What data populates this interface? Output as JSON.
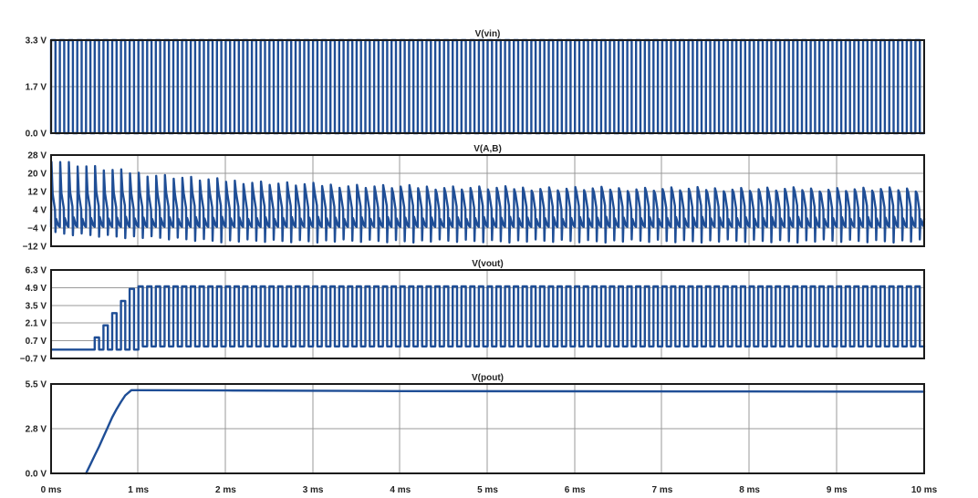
{
  "chart_data": [
    {
      "type": "line",
      "title": "V(vin)",
      "yticks": [
        "3.3 V",
        "1.7 V",
        "0.0 V"
      ],
      "ylim": [
        0,
        3.3
      ],
      "xlim_ms": [
        0,
        10
      ],
      "signal": {
        "kind": "square",
        "high": 3.3,
        "low": 0.0,
        "period_ms": 0.1,
        "duty": 0.5
      },
      "color": "#1f4e96"
    },
    {
      "type": "line",
      "title": "V(A,B)",
      "yticks": [
        "28 V",
        "20 V",
        "12 V",
        "4 V",
        "−4 V",
        "−12 V"
      ],
      "ylim": [
        -12,
        28
      ],
      "xlim_ms": [
        0,
        10
      ],
      "signal": {
        "kind": "ringing_square",
        "settled_high": 12,
        "settled_low": -4,
        "period_ms": 0.1,
        "initial_peak": 25,
        "spike_depth": -9
      },
      "color": "#1f4e96"
    },
    {
      "type": "line",
      "title": "V(vout)",
      "yticks": [
        "6.3 V",
        "4.9 V",
        "3.5 V",
        "2.1 V",
        "0.7 V",
        "−0.7 V"
      ],
      "ylim": [
        -0.7,
        6.3
      ],
      "xlim_ms": [
        0,
        10
      ],
      "signal": {
        "kind": "ramp_square",
        "start_ms": 0.4,
        "full_ms": 0.92,
        "high": 5.0,
        "low": 0.0,
        "period_ms": 0.1
      },
      "color": "#1f4e96"
    },
    {
      "type": "line",
      "title": "V(pout)",
      "yticks": [
        "5.5 V",
        "2.8 V",
        "0.0 V"
      ],
      "ylim": [
        0,
        5.5
      ],
      "xlim_ms": [
        0,
        10
      ],
      "series": [
        {
          "x": [
            0.4,
            0.45,
            0.5,
            0.55,
            0.6,
            0.65,
            0.7,
            0.75,
            0.8,
            0.85,
            0.92,
            1.0,
            2.0,
            4.0,
            6.0,
            8.0,
            10.0
          ],
          "y": [
            0.0,
            0.55,
            1.1,
            1.65,
            2.25,
            2.85,
            3.45,
            3.95,
            4.4,
            4.8,
            5.12,
            5.12,
            5.1,
            5.06,
            5.05,
            5.04,
            5.03
          ]
        }
      ],
      "color": "#1f4e96"
    }
  ],
  "x_tick_labels": [
    "0 ms",
    "1 ms",
    "2 ms",
    "3 ms",
    "4 ms",
    "5 ms",
    "6 ms",
    "7 ms",
    "8 ms",
    "9 ms",
    "10 ms"
  ],
  "x_tick_values_ms": [
    0,
    1,
    2,
    3,
    4,
    5,
    6,
    7,
    8,
    9,
    10
  ]
}
